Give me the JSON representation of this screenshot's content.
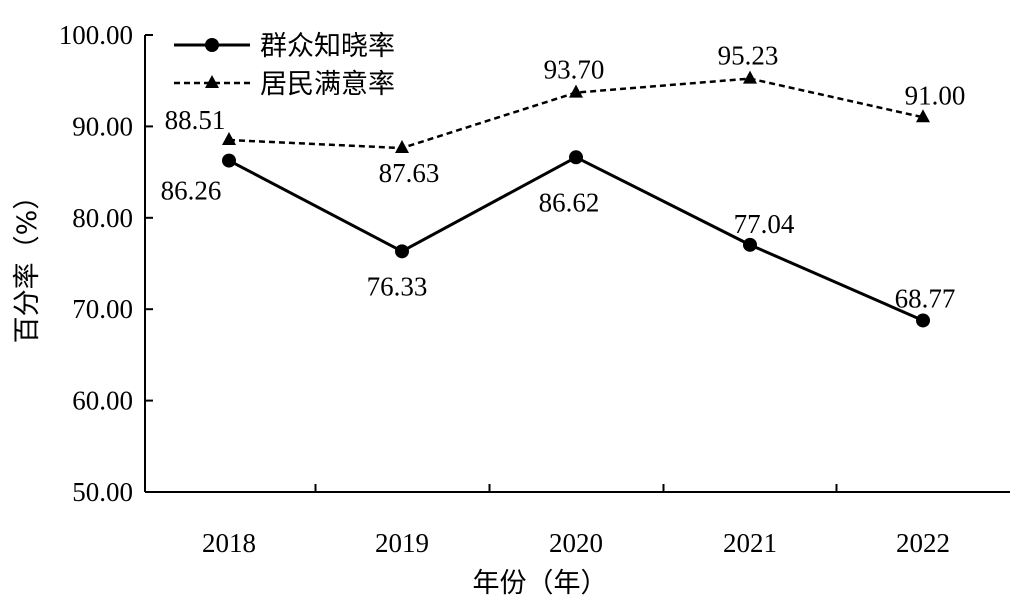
{
  "chart_data": {
    "type": "line",
    "categories": [
      "2018",
      "2019",
      "2020",
      "2021",
      "2022"
    ],
    "series": [
      {
        "name": "群众知晓率",
        "values": [
          86.26,
          76.33,
          86.62,
          77.04,
          68.77
        ],
        "style": "solid",
        "marker": "circle",
        "color": "#000000"
      },
      {
        "name": "居民满意率",
        "values": [
          88.51,
          87.63,
          93.7,
          95.23,
          91.0
        ],
        "style": "dashed",
        "marker": "triangle",
        "color": "#000000"
      }
    ],
    "value_labels": [
      [
        "86.26",
        "76.33",
        "86.62",
        "77.04",
        "68.77"
      ],
      [
        "88.51",
        "87.63",
        "93.70",
        "95.23",
        "91.00"
      ]
    ],
    "y_ticks": [
      "50.00",
      "60.00",
      "70.00",
      "80.00",
      "90.00",
      "100.00"
    ],
    "ylim": [
      50,
      100
    ],
    "xlabel": "年份（年）",
    "ylabel": "百分率（%）",
    "legend_position": "top-left",
    "grid": false
  }
}
